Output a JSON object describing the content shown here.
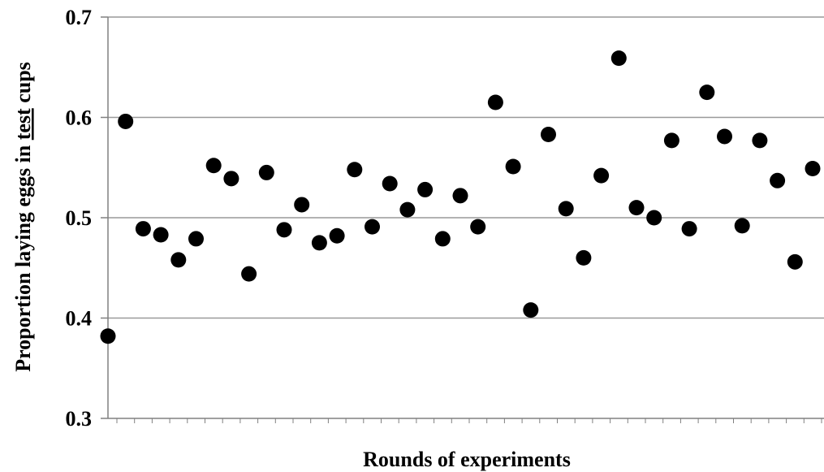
{
  "chart_data": {
    "type": "scatter",
    "xlabel": "Rounds of experiments",
    "ylabel_parts": [
      {
        "text": "Proportion laying eggs in ",
        "underline": false
      },
      {
        "text": "test",
        "underline": true
      },
      {
        "text": " cups",
        "underline": false
      }
    ],
    "ylim": [
      0.3,
      0.7
    ],
    "yticks": [
      "0.3",
      "0.4",
      "0.5",
      "0.6",
      "0.7"
    ],
    "ytick_values": [
      0.3,
      0.4,
      0.5,
      0.6,
      0.7
    ],
    "grid": true,
    "x": [
      1,
      2,
      3,
      4,
      5,
      6,
      7,
      8,
      9,
      10,
      11,
      12,
      13,
      14,
      15,
      16,
      17,
      18,
      19,
      20,
      21,
      22,
      23,
      24,
      25,
      26,
      27,
      28,
      29,
      30,
      31,
      32,
      33,
      34,
      35,
      36,
      37,
      38,
      39,
      40,
      41
    ],
    "values": [
      0.382,
      0.596,
      0.489,
      0.483,
      0.458,
      0.479,
      0.552,
      0.539,
      0.444,
      0.545,
      0.488,
      0.513,
      0.475,
      0.482,
      0.548,
      0.491,
      0.534,
      0.508,
      0.528,
      0.479,
      0.522,
      0.491,
      0.615,
      0.551,
      0.408,
      0.583,
      0.509,
      0.46,
      0.542,
      0.659,
      0.51,
      0.5,
      0.577,
      0.489,
      0.625,
      0.581,
      0.492,
      0.577,
      0.537,
      0.456,
      0.549
    ],
    "colors": {
      "points": "#000000",
      "grid": "#999999",
      "axis": "#808080"
    }
  }
}
